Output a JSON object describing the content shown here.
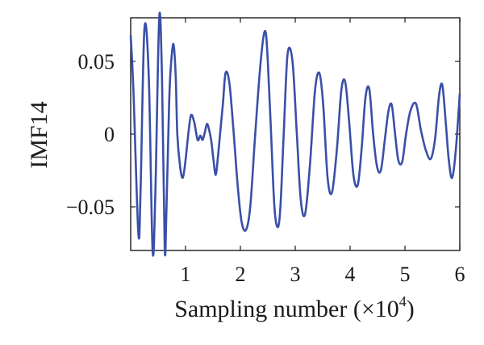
{
  "chart_data": {
    "type": "line",
    "title": "",
    "xlabel": "Sampling number (×10",
    "xlabel_exp": "4",
    "xlabel_close": ")",
    "ylabel": "IMF14",
    "xlim": [
      0,
      6
    ],
    "ylim": [
      -0.08,
      0.08
    ],
    "xticks": [
      1,
      2,
      3,
      4,
      5,
      6
    ],
    "xtick_labels": [
      "1",
      "2",
      "3",
      "4",
      "5",
      "6"
    ],
    "yticks": [
      0.05,
      0,
      -0.05
    ],
    "ytick_labels": [
      "0.05",
      "0",
      "−0.05"
    ],
    "grid": false,
    "line_color": "#3a4fa8",
    "series": [
      {
        "name": "",
        "x": [
          0.0,
          0.05,
          0.14,
          0.18,
          0.25,
          0.33,
          0.4,
          0.45,
          0.52,
          0.57,
          0.62,
          0.65,
          0.7,
          0.73,
          0.78,
          0.82,
          0.85,
          0.9,
          0.95,
          1.0,
          1.05,
          1.1,
          1.16,
          1.22,
          1.27,
          1.31,
          1.35,
          1.39,
          1.43,
          1.47,
          1.51,
          1.55,
          1.59,
          1.63,
          1.68,
          1.73,
          1.8,
          1.88,
          1.95,
          2.02,
          2.1,
          2.18,
          2.27,
          2.37,
          2.45,
          2.5,
          2.56,
          2.62,
          2.68,
          2.73,
          2.79,
          2.86,
          2.95,
          3.03,
          3.1,
          3.18,
          3.27,
          3.36,
          3.44,
          3.51,
          3.59,
          3.67,
          3.76,
          3.84,
          3.91,
          3.98,
          4.06,
          4.14,
          4.21,
          4.28,
          4.35,
          4.42,
          4.49,
          4.56,
          4.63,
          4.7,
          4.76,
          4.82,
          4.88,
          4.95,
          5.02,
          5.1,
          5.2,
          5.29,
          5.38,
          5.47,
          5.55,
          5.62,
          5.68,
          5.74,
          5.8,
          5.86,
          5.93,
          6.0
        ],
        "values": [
          0.068,
          0.03,
          -0.068,
          -0.04,
          0.072,
          0.04,
          -0.08,
          -0.04,
          0.08,
          0.04,
          -0.078,
          -0.055,
          0.02,
          0.045,
          0.062,
          0.04,
          0.0,
          -0.022,
          -0.03,
          -0.018,
          0.0,
          0.013,
          0.008,
          -0.004,
          -0.001,
          -0.004,
          0.001,
          0.007,
          0.003,
          -0.005,
          -0.018,
          -0.028,
          -0.016,
          0.0,
          0.02,
          0.042,
          0.035,
          0.0,
          -0.035,
          -0.06,
          -0.066,
          -0.05,
          0.0,
          0.05,
          0.071,
          0.05,
          0.0,
          -0.05,
          -0.064,
          -0.05,
          0.0,
          0.055,
          0.05,
          0.0,
          -0.045,
          -0.055,
          -0.02,
          0.03,
          0.042,
          0.02,
          -0.03,
          -0.04,
          -0.01,
          0.03,
          0.036,
          0.01,
          -0.028,
          -0.035,
          -0.01,
          0.025,
          0.031,
          0.0,
          -0.022,
          -0.025,
          -0.005,
          0.016,
          0.02,
          0.0,
          -0.018,
          -0.019,
          0.0,
          0.016,
          0.021,
          0.003,
          -0.011,
          -0.017,
          -0.003,
          0.026,
          0.034,
          0.01,
          -0.018,
          -0.03,
          -0.01,
          0.028
        ]
      }
    ]
  }
}
